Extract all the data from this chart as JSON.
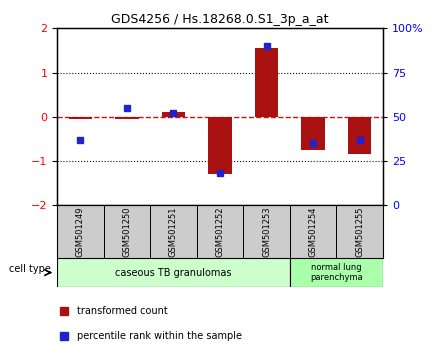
{
  "title": "GDS4256 / Hs.18268.0.S1_3p_a_at",
  "samples": [
    "GSM501249",
    "GSM501250",
    "GSM501251",
    "GSM501252",
    "GSM501253",
    "GSM501254",
    "GSM501255"
  ],
  "transformed_counts": [
    -0.05,
    -0.04,
    0.1,
    -1.3,
    1.55,
    -0.75,
    -0.85
  ],
  "percentile_ranks": [
    37,
    55,
    52,
    18,
    90,
    35,
    37
  ],
  "ylim_left": [
    -2,
    2
  ],
  "ylim_right": [
    0,
    100
  ],
  "yticks_left": [
    -2,
    -1,
    0,
    1,
    2
  ],
  "yticks_right": [
    0,
    25,
    50,
    75,
    100
  ],
  "ytick_labels_right": [
    "0",
    "25",
    "50",
    "75",
    "100%"
  ],
  "bar_color": "#AA1111",
  "dot_color": "#2222CC",
  "zero_line_color": "#CC1111",
  "grid_color": "#111111",
  "group1_label": "caseous TB granulomas",
  "group2_label": "normal lung\nparenchyma",
  "group1_indices": [
    0,
    1,
    2,
    3,
    4
  ],
  "group2_indices": [
    5,
    6
  ],
  "group1_bg": "#ccffcc",
  "group2_bg": "#aaffaa",
  "sample_bg": "#cccccc",
  "legend_red_label": "transformed count",
  "legend_blue_label": "percentile rank within the sample",
  "cell_type_label": "cell type"
}
